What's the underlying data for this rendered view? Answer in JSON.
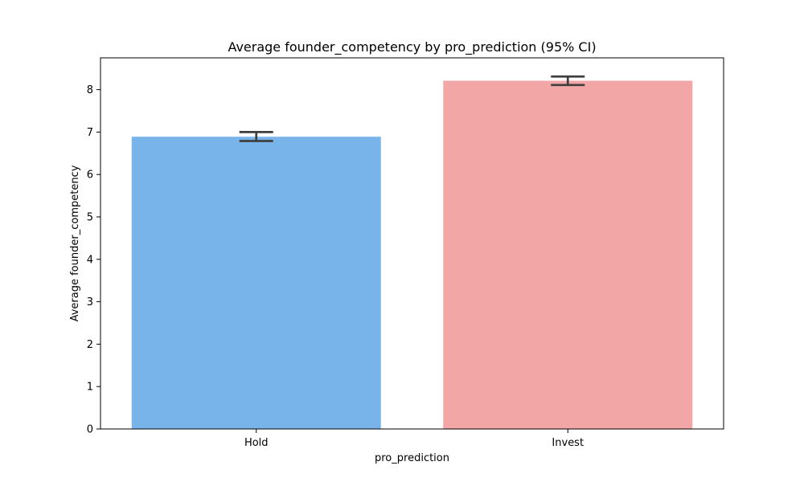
{
  "chart_data": {
    "type": "bar",
    "title": "Average founder_competency by pro_prediction (95% CI)",
    "xlabel": "pro_prediction",
    "ylabel": "Average founder_competency",
    "categories": [
      "Hold",
      "Invest"
    ],
    "values": [
      6.89,
      8.21
    ],
    "ci_lower": [
      6.79,
      8.11
    ],
    "ci_upper": [
      7.0,
      8.31
    ],
    "colors": [
      "#78b3ea",
      "#f2a6a6"
    ],
    "ylim": [
      0,
      8.75
    ],
    "yticks": [
      0,
      1,
      2,
      3,
      4,
      5,
      6,
      7,
      8
    ],
    "grid": false,
    "legend": "none"
  }
}
